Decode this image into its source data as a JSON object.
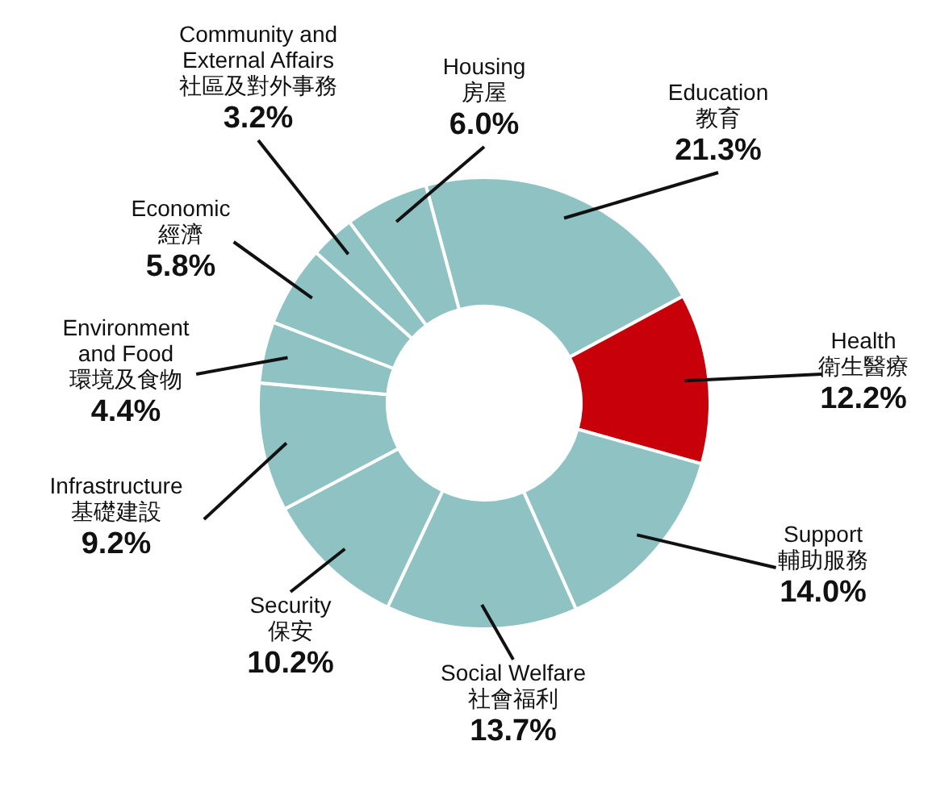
{
  "chart_data": {
    "type": "donut",
    "categories": [
      "Education\n教育",
      "Health\n衛生醫療",
      "Support\n輔助服務",
      "Social Welfare\n社會福利",
      "Security\n保安",
      "Infrastructure\n基礎建設",
      "Environment\nand Food\n環境及食物",
      "Economic\n經濟",
      "Community and\nExternal Affairs\n社區及對外事務",
      "Housing\n房屋"
    ],
    "values": [
      21.3,
      12.2,
      14.0,
      13.7,
      10.2,
      9.2,
      4.4,
      5.8,
      3.2,
      6.0
    ],
    "value_labels": [
      "21.3%",
      "12.2%",
      "14.0%",
      "13.7%",
      "10.2%",
      "9.2%",
      "4.4%",
      "5.8%",
      "3.2%",
      "6.0%"
    ],
    "colors": [
      "#8fc3c3",
      "#c8000a",
      "#8fc3c3",
      "#8fc3c3",
      "#8fc3c3",
      "#8fc3c3",
      "#8fc3c3",
      "#8fc3c3",
      "#8fc3c3",
      "#8fc3c3"
    ]
  }
}
